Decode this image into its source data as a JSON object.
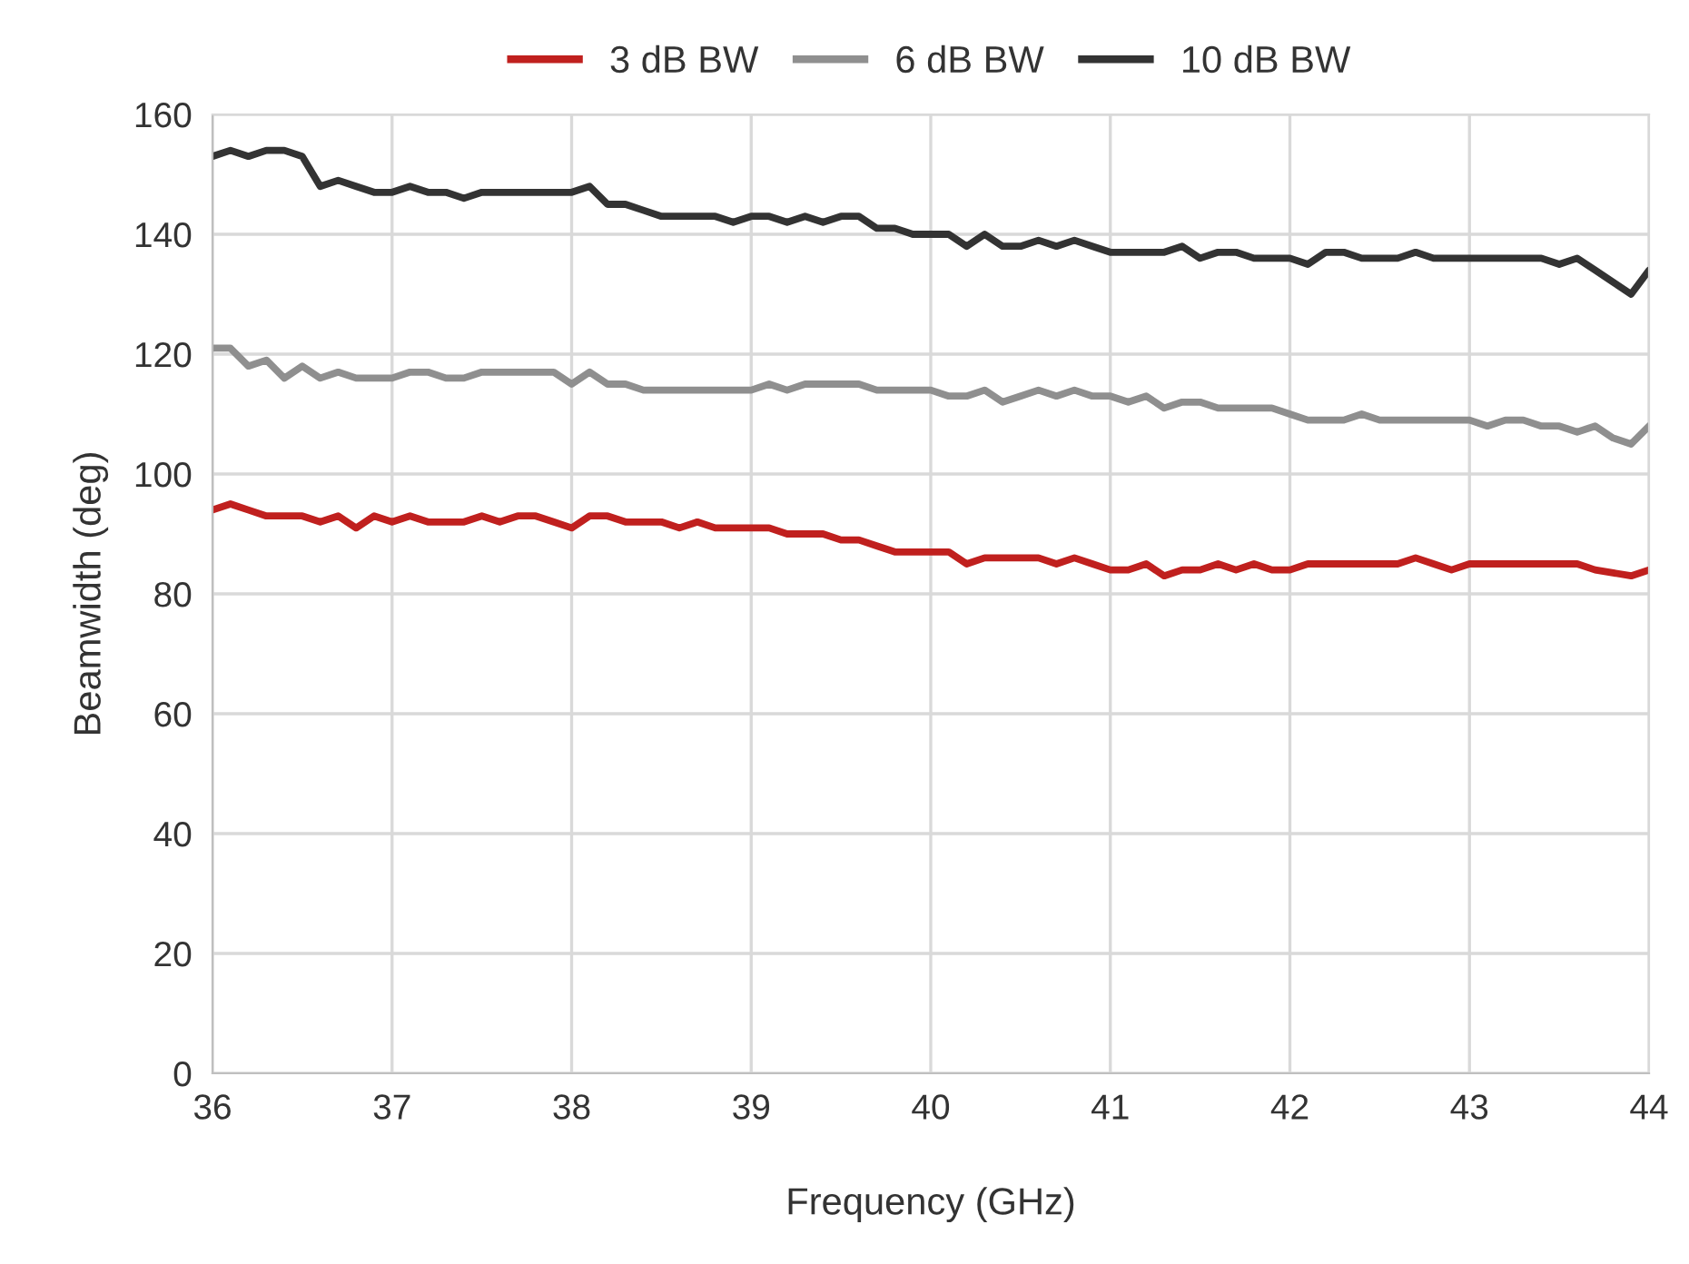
{
  "chart_data": {
    "type": "line",
    "xlabel": "Frequency (GHz)",
    "ylabel": "Beamwidth (deg)",
    "x": [
      36.0,
      36.1,
      36.2,
      36.3,
      36.4,
      36.5,
      36.6,
      36.7,
      36.8,
      36.9,
      37.0,
      37.1,
      37.2,
      37.3,
      37.4,
      37.5,
      37.6,
      37.7,
      37.8,
      37.9,
      38.0,
      38.1,
      38.2,
      38.3,
      38.4,
      38.5,
      38.6,
      38.7,
      38.8,
      38.9,
      39.0,
      39.1,
      39.2,
      39.3,
      39.4,
      39.5,
      39.6,
      39.7,
      39.8,
      39.9,
      40.0,
      40.1,
      40.2,
      40.3,
      40.4,
      40.5,
      40.6,
      40.7,
      40.8,
      40.9,
      41.0,
      41.1,
      41.2,
      41.3,
      41.4,
      41.5,
      41.6,
      41.7,
      41.8,
      41.9,
      42.0,
      42.1,
      42.2,
      42.3,
      42.4,
      42.5,
      42.6,
      42.7,
      42.8,
      42.9,
      43.0,
      43.1,
      43.2,
      43.3,
      43.4,
      43.5,
      43.6,
      43.7,
      43.8,
      43.9,
      44.0
    ],
    "series": [
      {
        "name": "3 dB BW",
        "color": "#c0201e",
        "values": [
          94,
          95,
          94,
          93,
          93,
          93,
          92,
          93,
          91,
          93,
          92,
          93,
          92,
          92,
          92,
          93,
          92,
          93,
          93,
          92,
          91,
          93,
          93,
          92,
          92,
          92,
          91,
          92,
          91,
          91,
          91,
          91,
          90,
          90,
          90,
          89,
          89,
          88,
          87,
          87,
          87,
          87,
          85,
          86,
          86,
          86,
          86,
          85,
          86,
          85,
          84,
          84,
          85,
          83,
          84,
          84,
          85,
          84,
          85,
          84,
          84,
          85,
          85,
          85,
          85,
          85,
          85,
          86,
          85,
          84,
          85,
          85,
          85,
          85,
          85,
          85,
          85,
          84,
          83.5,
          83,
          84
        ]
      },
      {
        "name": "6 dB BW",
        "color": "#8f8f8f",
        "values": [
          121,
          121,
          118,
          119,
          116,
          118,
          116,
          117,
          116,
          116,
          116,
          117,
          117,
          116,
          116,
          117,
          117,
          117,
          117,
          117,
          115,
          117,
          115,
          115,
          114,
          114,
          114,
          114,
          114,
          114,
          114,
          115,
          114,
          115,
          115,
          115,
          115,
          114,
          114,
          114,
          114,
          113,
          113,
          114,
          112,
          113,
          114,
          113,
          114,
          113,
          113,
          112,
          113,
          111,
          112,
          112,
          111,
          111,
          111,
          111,
          110,
          109,
          109,
          109,
          110,
          109,
          109,
          109,
          109,
          109,
          109,
          108,
          109,
          109,
          108,
          108,
          107,
          108,
          106,
          105,
          108
        ]
      },
      {
        "name": "10 dB BW",
        "color": "#333333",
        "values": [
          153,
          154,
          153,
          154,
          154,
          153,
          148,
          149,
          148,
          147,
          147,
          148,
          147,
          147,
          146,
          147,
          147,
          147,
          147,
          147,
          147,
          148,
          145,
          145,
          144,
          143,
          143,
          143,
          143,
          142,
          143,
          143,
          142,
          143,
          142,
          143,
          143,
          141,
          141,
          140,
          140,
          140,
          138,
          140,
          138,
          138,
          139,
          138,
          139,
          138,
          137,
          137,
          137,
          137,
          138,
          136,
          137,
          137,
          136,
          136,
          136,
          135,
          137,
          137,
          136,
          136,
          136,
          137,
          136,
          136,
          136,
          136,
          136,
          136,
          136,
          135,
          136,
          134,
          132,
          130,
          134
        ]
      }
    ],
    "xlim": [
      36,
      44
    ],
    "xticks": [
      36,
      37,
      38,
      39,
      40,
      41,
      42,
      43,
      44
    ],
    "ylim": [
      0,
      160
    ],
    "yticks": [
      0,
      20,
      40,
      60,
      80,
      100,
      120,
      140,
      160
    ],
    "grid": true,
    "legend": "top",
    "marker": "none",
    "line_style": "solid"
  }
}
